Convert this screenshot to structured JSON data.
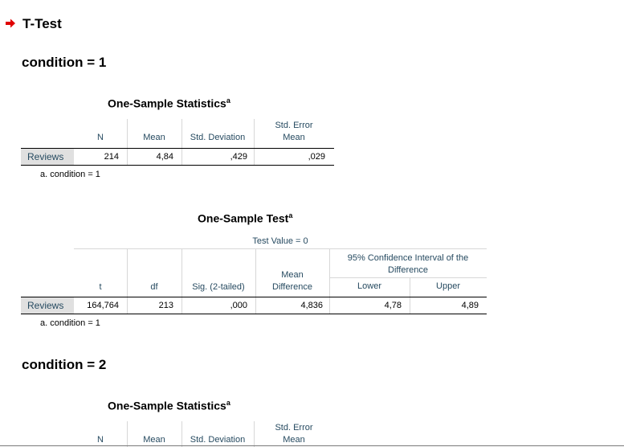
{
  "header": {
    "title": "T-Test",
    "arrow_color": "#e00000"
  },
  "section1": {
    "title": "condition = 1",
    "stats": {
      "title": "One-Sample Statistics",
      "superscript": "a",
      "columns": [
        "N",
        "Mean",
        "Std. Deviation",
        "Std. Error Mean"
      ],
      "col_std_error_line1": "Std. Error",
      "col_std_error_line2": "Mean",
      "row": {
        "label": "Reviews",
        "n": "214",
        "mean": "4,84",
        "sd": ",429",
        "se": ",029"
      },
      "footnote": "a. condition = 1"
    },
    "test": {
      "title": "One-Sample Test",
      "superscript": "a",
      "test_value": "Test Value = 0",
      "col_t": "t",
      "col_df": "df",
      "col_sig": "Sig. (2-tailed)",
      "col_meandiff_line1": "Mean",
      "col_meandiff_line2": "Difference",
      "ci_line1": "95% Confidence Interval of the",
      "ci_line2": "Difference",
      "col_lower": "Lower",
      "col_upper": "Upper",
      "row": {
        "label": "Reviews",
        "t": "164,764",
        "df": "213",
        "sig": ",000",
        "meandiff": "4,836",
        "lower": "4,78",
        "upper": "4,89"
      },
      "footnote": "a. condition = 1"
    }
  },
  "section2": {
    "title": "condition = 2",
    "stats": {
      "title": "One-Sample Statistics",
      "superscript": "a",
      "col_n": "N",
      "col_mean": "Mean",
      "col_sd": "Std. Deviation",
      "col_std_error_line1": "Std. Error",
      "col_std_error_line2": "Mean"
    }
  }
}
